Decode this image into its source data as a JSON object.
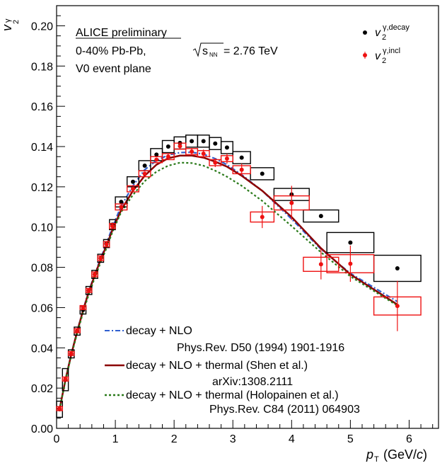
{
  "chart_data": {
    "type": "scatter",
    "xlabel": "p_T (GeV/c)",
    "ylabel": "v_2^γ",
    "xlim": [
      0,
      6.5
    ],
    "ylim": [
      0,
      0.21
    ],
    "xticks": [
      0,
      1,
      2,
      3,
      4,
      5,
      6
    ],
    "yticks": [
      0.0,
      0.02,
      0.04,
      0.06,
      0.08,
      0.1,
      0.12,
      0.14,
      0.16,
      0.18,
      0.2
    ],
    "grid": false,
    "annotations": {
      "line1": "ALICE preliminary",
      "line2_prefix": "0-40% Pb-Pb, ",
      "line2_suffix": " = 2.76 TeV",
      "sqrt_label": "s",
      "sqrt_sub": "NN",
      "line3": "V0 event plane"
    },
    "legend_points": {
      "placement": "top-right",
      "decay": {
        "base": "v",
        "sub": "2",
        "sup": "γ,decay"
      },
      "incl": {
        "base": "v",
        "sub": "2",
        "sup": "γ,incl"
      }
    },
    "legend_curves": {
      "placement": "bottom-left",
      "items": [
        {
          "label": "decay + NLO",
          "ref": "Phys.Rev. D50 (1994) 1901-1916",
          "color": "#3060d0",
          "style": "dashdot"
        },
        {
          "label": "decay + NLO + thermal (Shen et al.)",
          "ref": "arXiv:1308.2111",
          "color": "#8b0000",
          "style": "solid"
        },
        {
          "label": "decay + NLO + thermal (Holopainen et al.)",
          "ref": "Phys.Rev. C84 (2011) 064903",
          "color": "#2a7a1a",
          "style": "dotted"
        }
      ]
    },
    "series": [
      {
        "name": "v2 gamma decay",
        "color": "#000000",
        "x": [
          0.05,
          0.15,
          0.25,
          0.35,
          0.45,
          0.55,
          0.65,
          0.75,
          0.85,
          0.95,
          1.1,
          1.3,
          1.5,
          1.7,
          1.9,
          2.1,
          2.3,
          2.5,
          2.7,
          2.9,
          3.15,
          3.5,
          4.0,
          4.5,
          5.0,
          5.8
        ],
        "y": [
          0.0095,
          0.0242,
          0.037,
          0.0483,
          0.0588,
          0.0685,
          0.0765,
          0.0845,
          0.0918,
          0.1012,
          0.1125,
          0.1225,
          0.1305,
          0.136,
          0.14,
          0.1418,
          0.1427,
          0.1427,
          0.1415,
          0.1395,
          0.1345,
          0.1265,
          0.1162,
          0.1055,
          0.0923,
          0.0795
        ],
        "xerr": [
          0.05,
          0.05,
          0.05,
          0.05,
          0.05,
          0.05,
          0.05,
          0.05,
          0.05,
          0.05,
          0.1,
          0.1,
          0.1,
          0.1,
          0.1,
          0.1,
          0.1,
          0.1,
          0.1,
          0.1,
          0.15,
          0.2,
          0.3,
          0.3,
          0.4,
          0.4
        ],
        "sys": [
          0.004,
          0.0055,
          0.002,
          0.002,
          0.002,
          0.002,
          0.002,
          0.002,
          0.002,
          0.0025,
          0.0025,
          0.0025,
          0.0025,
          0.003,
          0.003,
          0.003,
          0.003,
          0.003,
          0.003,
          0.003,
          0.003,
          0.003,
          0.003,
          0.003,
          0.005,
          0.0065
        ]
      },
      {
        "name": "v2 gamma incl",
        "color": "#ee1111",
        "x": [
          0.05,
          0.15,
          0.25,
          0.35,
          0.45,
          0.55,
          0.65,
          0.75,
          0.85,
          0.95,
          1.1,
          1.3,
          1.5,
          1.7,
          1.9,
          2.1,
          2.3,
          2.5,
          2.7,
          2.9,
          3.15,
          3.5,
          4.0,
          4.5,
          5.0,
          5.8
        ],
        "y": [
          0.0098,
          0.0245,
          0.0372,
          0.0485,
          0.06,
          0.0685,
          0.0765,
          0.0845,
          0.0915,
          0.1005,
          0.11,
          0.119,
          0.1265,
          0.1335,
          0.135,
          0.1402,
          0.1375,
          0.1365,
          0.132,
          0.134,
          0.1285,
          0.105,
          0.112,
          0.0815,
          0.0818,
          0.0608
        ],
        "xerr": [
          0.05,
          0.05,
          0.05,
          0.05,
          0.05,
          0.05,
          0.05,
          0.05,
          0.05,
          0.05,
          0.1,
          0.1,
          0.1,
          0.1,
          0.1,
          0.1,
          0.1,
          0.1,
          0.1,
          0.1,
          0.15,
          0.2,
          0.3,
          0.3,
          0.4,
          0.4
        ],
        "sys": [
          0.001,
          0.001,
          0.001,
          0.001,
          0.001,
          0.001,
          0.0012,
          0.0012,
          0.0013,
          0.0013,
          0.0015,
          0.0015,
          0.0015,
          0.0015,
          0.0015,
          0.0015,
          0.0015,
          0.0015,
          0.0015,
          0.0015,
          0.002,
          0.0025,
          0.0035,
          0.0035,
          0.0045,
          0.0045
        ],
        "stat": [
          0.0005,
          0.0005,
          0.0005,
          0.0005,
          0.0005,
          0.0005,
          0.0005,
          0.0005,
          0.0005,
          0.0005,
          0.001,
          0.001,
          0.001,
          0.001,
          0.0012,
          0.0015,
          0.0018,
          0.002,
          0.0022,
          0.0025,
          0.003,
          0.0055,
          0.0085,
          0.0075,
          0.009,
          0.0125
        ]
      }
    ],
    "curves": [
      {
        "name": "decay + NLO",
        "color": "#3060d0",
        "style": "dashdot",
        "x": [
          0.05,
          0.15,
          0.25,
          0.35,
          0.45,
          0.55,
          0.65,
          0.75,
          0.85,
          0.95,
          1.1,
          1.3,
          1.5,
          1.7,
          1.9,
          2.1,
          2.3,
          2.5,
          2.7,
          2.9,
          3.15,
          3.5,
          4.0,
          4.5,
          5.0,
          5.8
        ],
        "y": [
          0.0095,
          0.0242,
          0.037,
          0.0483,
          0.0588,
          0.0685,
          0.0765,
          0.0845,
          0.0918,
          0.1,
          0.1105,
          0.1205,
          0.1285,
          0.133,
          0.1358,
          0.137,
          0.1372,
          0.1362,
          0.134,
          0.131,
          0.126,
          0.118,
          0.104,
          0.089,
          0.077,
          0.063
        ]
      },
      {
        "name": "decay + NLO + thermal (Shen et al.)",
        "color": "#8b0000",
        "style": "solid",
        "x": [
          0.05,
          0.15,
          0.25,
          0.35,
          0.45,
          0.55,
          0.65,
          0.75,
          0.85,
          0.95,
          1.1,
          1.3,
          1.5,
          1.7,
          1.9,
          2.1,
          2.3,
          2.5,
          2.7,
          2.9,
          3.15,
          3.5,
          4.0,
          4.5,
          5.0,
          5.8
        ],
        "y": [
          0.0095,
          0.024,
          0.0368,
          0.048,
          0.0585,
          0.068,
          0.076,
          0.0838,
          0.0908,
          0.0985,
          0.1085,
          0.118,
          0.1255,
          0.131,
          0.1342,
          0.1355,
          0.1355,
          0.1345,
          0.1325,
          0.13,
          0.1255,
          0.118,
          0.105,
          0.0895,
          0.0765,
          0.0615
        ]
      },
      {
        "name": "decay + NLO + thermal (Holopainen et al.)",
        "color": "#2a7a1a",
        "style": "dotted",
        "x": [
          0.05,
          0.15,
          0.25,
          0.35,
          0.45,
          0.55,
          0.65,
          0.75,
          0.85,
          0.95,
          1.1,
          1.3,
          1.5,
          1.7,
          1.9,
          2.1,
          2.3,
          2.5,
          2.7,
          2.9,
          3.15,
          3.5,
          4.0,
          4.5,
          5.0,
          5.8
        ],
        "y": [
          0.0093,
          0.0236,
          0.0362,
          0.0472,
          0.0575,
          0.0668,
          0.0748,
          0.0825,
          0.0895,
          0.0975,
          0.1075,
          0.116,
          0.1228,
          0.1275,
          0.1305,
          0.132,
          0.1318,
          0.1305,
          0.128,
          0.125,
          0.1205,
          0.113,
          0.1005,
          0.0875,
          0.0755,
          0.061
        ]
      }
    ]
  }
}
